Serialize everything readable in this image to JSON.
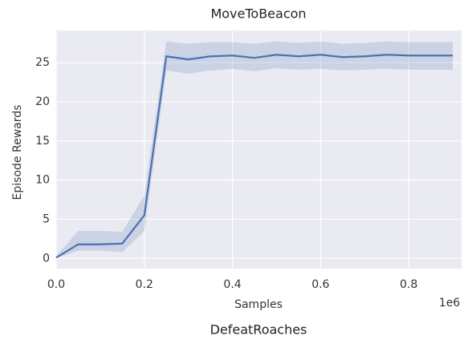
{
  "chart_data": {
    "type": "line",
    "title": "MoveToBeacon",
    "x_label": "Samples",
    "y_label": "Episode Rewards",
    "x_offset_label": "1e6",
    "x": [
      0,
      0.05,
      0.1,
      0.15,
      0.2,
      0.25,
      0.3,
      0.35,
      0.4,
      0.45,
      0.5,
      0.55,
      0.6,
      0.65,
      0.7,
      0.75,
      0.8,
      0.85,
      0.9
    ],
    "series": [
      {
        "color": "#4c72b0",
        "values": [
          0.1,
          1.8,
          1.8,
          1.9,
          5.5,
          25.8,
          25.4,
          25.8,
          25.9,
          25.6,
          26.0,
          25.8,
          26.0,
          25.7,
          25.8,
          26.0,
          25.9,
          25.9,
          25.9
        ]
      }
    ],
    "band": {
      "color": "#4c72b0",
      "lower": [
        0,
        1.0,
        1.0,
        0.8,
        3.5,
        24.0,
        23.6,
        24.0,
        24.2,
        23.9,
        24.3,
        24.1,
        24.2,
        24.0,
        24.1,
        24.2,
        24.1,
        24.1,
        24.1
      ],
      "upper": [
        0.3,
        3.5,
        3.5,
        3.4,
        8.0,
        27.7,
        27.4,
        27.6,
        27.6,
        27.4,
        27.7,
        27.5,
        27.7,
        27.4,
        27.5,
        27.7,
        27.6,
        27.6,
        27.6
      ]
    },
    "xlim": [
      0,
      0.92
    ],
    "ylim": [
      -1.3,
      29.1
    ],
    "xticks": [
      {
        "value": 0,
        "label": "0.0"
      },
      0.2,
      0.4,
      0.6,
      0.8
    ],
    "yticks": [
      0,
      5,
      10,
      15,
      20,
      25
    ],
    "grid": true,
    "background": "#eaeaf2"
  },
  "next_chart_title": "DefeatRoaches"
}
